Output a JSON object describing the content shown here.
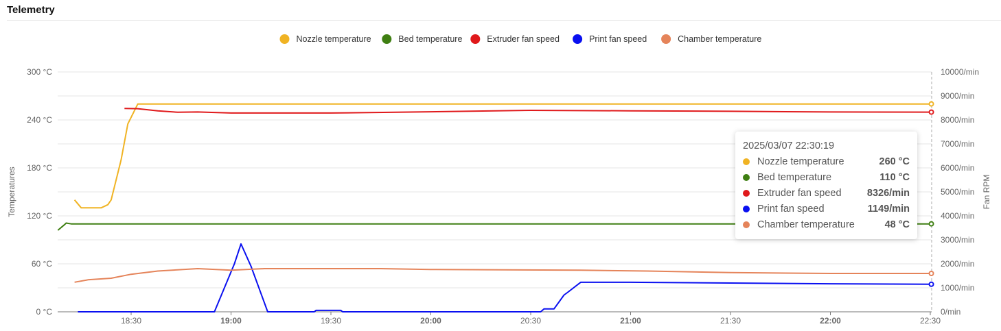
{
  "header": {
    "title": "Telemetry"
  },
  "chart_data": {
    "type": "line",
    "title": "",
    "xlabel": "",
    "ylabel_left": "Temperatures",
    "ylabel_right": "Fan RPM",
    "ylim_left": [
      0,
      300
    ],
    "ylim_right": [
      0,
      10000
    ],
    "xlim": [
      "18:08",
      "22:30:19"
    ],
    "grid": true,
    "legend_position": "top",
    "left_ticks": [
      "0 °C",
      "60 °C",
      "120 °C",
      "180 °C",
      "240 °C",
      "300 °C"
    ],
    "right_ticks": [
      "0/min",
      "1000/min",
      "2000/min",
      "3000/min",
      "4000/min",
      "5000/min",
      "6000/min",
      "7000/min",
      "8000/min",
      "9000/min",
      "10000/min"
    ],
    "x_ticks": [
      {
        "label": "18:30",
        "bold": false
      },
      {
        "label": "19:00",
        "bold": true
      },
      {
        "label": "19:30",
        "bold": false
      },
      {
        "label": "20:00",
        "bold": true
      },
      {
        "label": "20:30",
        "bold": false
      },
      {
        "label": "21:00",
        "bold": true
      },
      {
        "label": "21:30",
        "bold": false
      },
      {
        "label": "22:00",
        "bold": true
      },
      {
        "label": "22:30",
        "bold": false
      }
    ],
    "series": [
      {
        "name": "Nozzle temperature",
        "axis": "left",
        "color": "#f0b323",
        "points": [
          [
            "18:13",
            140
          ],
          [
            "18:15",
            130
          ],
          [
            "18:21",
            130
          ],
          [
            "18:23",
            134
          ],
          [
            "18:24",
            140
          ],
          [
            "18:27",
            190
          ],
          [
            "18:29",
            235
          ],
          [
            "18:32",
            260
          ],
          [
            "19:00",
            260
          ],
          [
            "20:00",
            260
          ],
          [
            "21:00",
            260
          ],
          [
            "22:00",
            260
          ],
          [
            "22:30:19",
            260
          ]
        ]
      },
      {
        "name": "Bed temperature",
        "axis": "left",
        "color": "#3f7f12",
        "points": [
          [
            "18:08",
            102
          ],
          [
            "18:10",
            109
          ],
          [
            "18:10:30",
            111
          ],
          [
            "18:12",
            110
          ],
          [
            "19:00",
            110
          ],
          [
            "20:00",
            110
          ],
          [
            "21:00",
            110
          ],
          [
            "22:00",
            110
          ],
          [
            "22:30:19",
            110
          ]
        ]
      },
      {
        "name": "Extruder fan speed",
        "axis": "right",
        "color": "#e0191b",
        "points": [
          [
            "18:28",
            8480
          ],
          [
            "18:32",
            8470
          ],
          [
            "18:38",
            8380
          ],
          [
            "18:44",
            8320
          ],
          [
            "18:50",
            8330
          ],
          [
            "19:00",
            8290
          ],
          [
            "19:30",
            8290
          ],
          [
            "20:00",
            8340
          ],
          [
            "20:30",
            8400
          ],
          [
            "21:00",
            8380
          ],
          [
            "21:30",
            8360
          ],
          [
            "22:00",
            8330
          ],
          [
            "22:30:19",
            8326
          ]
        ]
      },
      {
        "name": "Print fan speed",
        "axis": "right",
        "color": "#0a10f0",
        "points": [
          [
            "18:14",
            0
          ],
          [
            "18:55",
            0
          ],
          [
            "19:01",
            2000
          ],
          [
            "19:03",
            2830
          ],
          [
            "19:06",
            1900
          ],
          [
            "19:11",
            0
          ],
          [
            "19:25",
            0
          ],
          [
            "19:25:30",
            60
          ],
          [
            "19:33",
            60
          ],
          [
            "19:33:30",
            0
          ],
          [
            "20:33",
            0
          ],
          [
            "20:34",
            120
          ],
          [
            "20:37",
            120
          ],
          [
            "20:40",
            700
          ],
          [
            "20:41",
            800
          ],
          [
            "20:45",
            1230
          ],
          [
            "21:00",
            1230
          ],
          [
            "21:30",
            1200
          ],
          [
            "22:00",
            1170
          ],
          [
            "22:30:19",
            1149
          ]
        ]
      },
      {
        "name": "Chamber temperature",
        "axis": "left",
        "color": "#e5845a",
        "points": [
          [
            "18:13",
            37
          ],
          [
            "18:17",
            40
          ],
          [
            "18:24",
            42
          ],
          [
            "18:30",
            47
          ],
          [
            "18:38",
            51
          ],
          [
            "18:50",
            54
          ],
          [
            "19:00",
            52
          ],
          [
            "19:10",
            54
          ],
          [
            "19:45",
            54
          ],
          [
            "20:00",
            53
          ],
          [
            "20:45",
            52
          ],
          [
            "21:05",
            51
          ],
          [
            "21:30",
            49
          ],
          [
            "22:00",
            48
          ],
          [
            "22:30:19",
            48
          ]
        ]
      }
    ]
  },
  "tooltip": {
    "time": "2025/03/07 22:30:19",
    "rows": [
      {
        "name": "Nozzle temperature",
        "value": "260 °C",
        "color": "#f0b323"
      },
      {
        "name": "Bed temperature",
        "value": "110 °C",
        "color": "#3f7f12"
      },
      {
        "name": "Extruder fan speed",
        "value": "8326/min",
        "color": "#e0191b"
      },
      {
        "name": "Print fan speed",
        "value": "1149/min",
        "color": "#0a10f0"
      },
      {
        "name": "Chamber temperature",
        "value": "48 °C",
        "color": "#e5845a"
      }
    ]
  }
}
